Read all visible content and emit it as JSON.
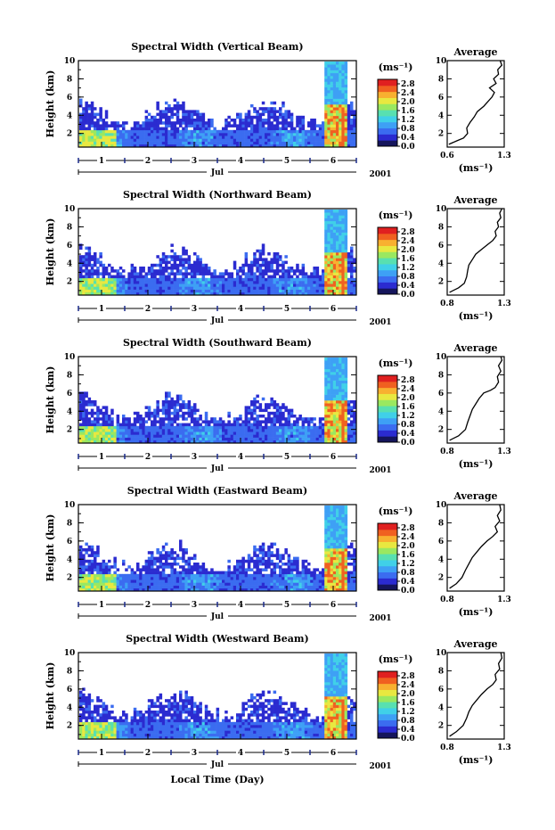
{
  "chart_data": [
    {
      "type": "heatmap",
      "title": "Spectral Width (Vertical Beam)",
      "ylabel": "Height (km)",
      "ylim": [
        0.5,
        10
      ],
      "yticks": [
        2,
        4,
        6,
        8,
        10
      ],
      "xticks": [
        "1",
        "2",
        "3",
        "4",
        "5",
        "6"
      ],
      "xlim": [
        0.5,
        6.5
      ],
      "month": "Jul",
      "year": "2001",
      "colorbar": {
        "unit": "(ms⁻¹)",
        "ticks": [
          "0.0",
          "0.4",
          "0.8",
          "1.2",
          "1.6",
          "2.0",
          "2.4",
          "2.8"
        ],
        "range": [
          0,
          3.0
        ]
      },
      "average": {
        "title": "Average",
        "xlabel": "(ms⁻¹)",
        "xticks": [
          "0.6",
          "1.3"
        ],
        "xlim": [
          0.6,
          1.3
        ],
        "ylim": [
          0.5,
          10
        ],
        "profile": [
          [
            0.62,
            0.8
          ],
          [
            0.72,
            1.2
          ],
          [
            0.8,
            1.5
          ],
          [
            0.85,
            2.0
          ],
          [
            0.84,
            2.6
          ],
          [
            0.88,
            3.2
          ],
          [
            0.93,
            3.8
          ],
          [
            0.97,
            4.4
          ],
          [
            1.05,
            5.0
          ],
          [
            1.1,
            5.5
          ],
          [
            1.15,
            6.0
          ],
          [
            1.18,
            6.5
          ],
          [
            1.12,
            7.0
          ],
          [
            1.2,
            7.5
          ],
          [
            1.17,
            8.0
          ],
          [
            1.23,
            8.5
          ],
          [
            1.22,
            9.0
          ],
          [
            1.27,
            9.5
          ],
          [
            1.25,
            10.0
          ]
        ]
      }
    },
    {
      "type": "heatmap",
      "title": "Spectral Width (Northward Beam)",
      "ylabel": "Height (km)",
      "ylim": [
        0.5,
        10
      ],
      "yticks": [
        2,
        4,
        6,
        8,
        10
      ],
      "xticks": [
        "1",
        "2",
        "3",
        "4",
        "5",
        "6"
      ],
      "xlim": [
        0.5,
        6.5
      ],
      "month": "Jul",
      "year": "2001",
      "colorbar": {
        "unit": "(ms⁻¹)",
        "ticks": [
          "0.0",
          "0.4",
          "0.8",
          "1.2",
          "1.6",
          "2.0",
          "2.4",
          "2.8"
        ],
        "range": [
          0,
          3.0
        ]
      },
      "average": {
        "title": "Average",
        "xlabel": "(ms⁻¹)",
        "xticks": [
          "0.8",
          "1.3"
        ],
        "xlim": [
          0.8,
          1.3
        ],
        "ylim": [
          0.5,
          10
        ],
        "profile": [
          [
            0.82,
            0.8
          ],
          [
            0.9,
            1.3
          ],
          [
            0.95,
            1.8
          ],
          [
            0.97,
            2.5
          ],
          [
            0.98,
            3.2
          ],
          [
            0.99,
            3.8
          ],
          [
            1.02,
            4.4
          ],
          [
            1.05,
            5.0
          ],
          [
            1.1,
            5.5
          ],
          [
            1.15,
            6.0
          ],
          [
            1.2,
            6.5
          ],
          [
            1.23,
            7.0
          ],
          [
            1.22,
            7.5
          ],
          [
            1.25,
            8.0
          ],
          [
            1.24,
            8.5
          ],
          [
            1.27,
            9.0
          ],
          [
            1.26,
            9.5
          ],
          [
            1.28,
            10.0
          ]
        ]
      }
    },
    {
      "type": "heatmap",
      "title": "Spectral Width (Southward Beam)",
      "ylabel": "Height (km)",
      "ylim": [
        0.5,
        10
      ],
      "yticks": [
        2,
        4,
        6,
        8,
        10
      ],
      "xticks": [
        "1",
        "2",
        "3",
        "4",
        "5",
        "6"
      ],
      "xlim": [
        0.5,
        6.5
      ],
      "month": "Jul",
      "year": "2001",
      "colorbar": {
        "unit": "(ms⁻¹)",
        "ticks": [
          "0.0",
          "0.4",
          "0.8",
          "1.2",
          "1.6",
          "2.0",
          "2.4",
          "2.8"
        ],
        "range": [
          0,
          3.0
        ]
      },
      "average": {
        "title": "Average",
        "xlabel": "(ms⁻¹)",
        "xticks": [
          "0.8",
          "1.3"
        ],
        "xlim": [
          0.8,
          1.3
        ],
        "ylim": [
          0.5,
          10
        ],
        "profile": [
          [
            0.82,
            0.8
          ],
          [
            0.9,
            1.3
          ],
          [
            0.96,
            2.0
          ],
          [
            0.98,
            2.8
          ],
          [
            1.0,
            3.5
          ],
          [
            1.02,
            4.2
          ],
          [
            1.05,
            4.8
          ],
          [
            1.08,
            5.4
          ],
          [
            1.12,
            6.0
          ],
          [
            1.18,
            6.3
          ],
          [
            1.22,
            6.6
          ],
          [
            1.25,
            7.2
          ],
          [
            1.24,
            7.8
          ],
          [
            1.27,
            8.4
          ],
          [
            1.25,
            9.0
          ],
          [
            1.28,
            9.6
          ],
          [
            1.27,
            10.0
          ]
        ]
      }
    },
    {
      "type": "heatmap",
      "title": "Spectral Width (Eastward Beam)",
      "ylabel": "Height (km)",
      "ylim": [
        0.5,
        10
      ],
      "yticks": [
        2,
        4,
        6,
        8,
        10
      ],
      "xticks": [
        "1",
        "2",
        "3",
        "4",
        "5",
        "6"
      ],
      "xlim": [
        0.5,
        6.5
      ],
      "month": "Jul",
      "year": "2001",
      "colorbar": {
        "unit": "(ms⁻¹)",
        "ticks": [
          "0.0",
          "0.4",
          "0.8",
          "1.2",
          "1.6",
          "2.0",
          "2.4",
          "2.8"
        ],
        "range": [
          0,
          3.0
        ]
      },
      "average": {
        "title": "Average",
        "xlabel": "(ms⁻¹)",
        "xticks": [
          "0.8",
          "1.3"
        ],
        "xlim": [
          0.8,
          1.3
        ],
        "ylim": [
          0.5,
          10
        ],
        "profile": [
          [
            0.82,
            0.8
          ],
          [
            0.88,
            1.3
          ],
          [
            0.93,
            2.0
          ],
          [
            0.96,
            2.8
          ],
          [
            0.99,
            3.5
          ],
          [
            1.02,
            4.2
          ],
          [
            1.06,
            4.8
          ],
          [
            1.1,
            5.4
          ],
          [
            1.15,
            6.0
          ],
          [
            1.2,
            6.5
          ],
          [
            1.24,
            7.0
          ],
          [
            1.22,
            7.6
          ],
          [
            1.26,
            8.2
          ],
          [
            1.24,
            8.8
          ],
          [
            1.27,
            9.4
          ],
          [
            1.26,
            10.0
          ]
        ]
      }
    },
    {
      "type": "heatmap",
      "title": "Spectral Width (Westward Beam)",
      "ylabel": "Height (km)",
      "ylim": [
        0.5,
        10
      ],
      "yticks": [
        2,
        4,
        6,
        8,
        10
      ],
      "xticks": [
        "1",
        "2",
        "3",
        "4",
        "5",
        "6"
      ],
      "xlim": [
        0.5,
        6.5
      ],
      "month": "Jul",
      "year": "2001",
      "xlabel": "Local Time (Day)",
      "colorbar": {
        "unit": "(ms⁻¹)",
        "ticks": [
          "0.0",
          "0.4",
          "0.8",
          "1.2",
          "1.6",
          "2.0",
          "2.4",
          "2.8"
        ],
        "range": [
          0,
          3.0
        ]
      },
      "average": {
        "title": "Average",
        "xlabel": "(ms⁻¹)",
        "xticks": [
          "0.8",
          "1.3"
        ],
        "xlim": [
          0.8,
          1.3
        ],
        "ylim": [
          0.5,
          10
        ],
        "profile": [
          [
            0.82,
            0.8
          ],
          [
            0.88,
            1.3
          ],
          [
            0.94,
            2.0
          ],
          [
            0.97,
            2.8
          ],
          [
            0.99,
            3.5
          ],
          [
            1.02,
            4.2
          ],
          [
            1.06,
            4.8
          ],
          [
            1.1,
            5.4
          ],
          [
            1.15,
            6.0
          ],
          [
            1.2,
            6.5
          ],
          [
            1.23,
            7.0
          ],
          [
            1.22,
            7.6
          ],
          [
            1.26,
            8.2
          ],
          [
            1.25,
            8.8
          ],
          [
            1.28,
            9.4
          ],
          [
            1.27,
            10.0
          ]
        ]
      }
    }
  ],
  "palette": [
    "#15155c",
    "#2b2bd0",
    "#3b6cf0",
    "#3ea0f5",
    "#40d0e8",
    "#58e0b0",
    "#9ae860",
    "#e8e840",
    "#f8b030",
    "#f06020",
    "#e02020"
  ]
}
